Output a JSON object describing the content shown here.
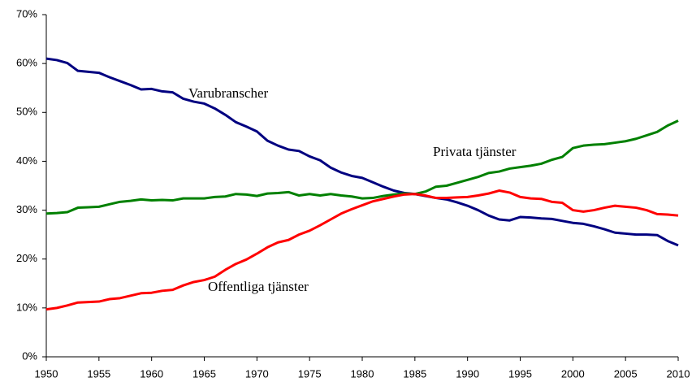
{
  "chart_data": {
    "type": "line",
    "x": [
      1950,
      1951,
      1952,
      1953,
      1954,
      1955,
      1956,
      1957,
      1958,
      1959,
      1960,
      1961,
      1962,
      1963,
      1964,
      1965,
      1966,
      1967,
      1968,
      1969,
      1970,
      1971,
      1972,
      1973,
      1974,
      1975,
      1976,
      1977,
      1978,
      1979,
      1980,
      1981,
      1982,
      1983,
      1984,
      1985,
      1986,
      1987,
      1988,
      1989,
      1990,
      1991,
      1992,
      1993,
      1994,
      1995,
      1996,
      1997,
      1998,
      1999,
      2000,
      2001,
      2002,
      2003,
      2004,
      2005,
      2006,
      2007,
      2008,
      2009,
      2010
    ],
    "series": [
      {
        "name": "Varubranscher",
        "color": "#000080",
        "values": [
          61.0,
          60.7,
          60.1,
          58.5,
          58.3,
          58.1,
          57.2,
          56.4,
          55.6,
          54.7,
          54.8,
          54.3,
          54.1,
          52.8,
          52.2,
          51.8,
          50.8,
          49.5,
          48.0,
          47.1,
          46.1,
          44.2,
          43.2,
          42.4,
          42.1,
          41.0,
          40.2,
          38.7,
          37.7,
          37.0,
          36.6,
          35.7,
          34.8,
          34.0,
          33.5,
          33.3,
          32.9,
          32.5,
          32.2,
          31.6,
          30.9,
          30.0,
          28.9,
          28.1,
          27.9,
          28.6,
          28.5,
          28.3,
          28.2,
          27.8,
          27.4,
          27.2,
          26.7,
          26.1,
          25.4,
          25.2,
          25.0,
          25.0,
          24.9,
          23.7,
          22.8
        ]
      },
      {
        "name": "Privata tjänster",
        "color": "#008000",
        "values": [
          29.3,
          29.4,
          29.6,
          30.5,
          30.6,
          30.7,
          31.2,
          31.7,
          31.9,
          32.2,
          32.0,
          32.1,
          32.0,
          32.4,
          32.4,
          32.4,
          32.7,
          32.8,
          33.3,
          33.2,
          32.9,
          33.4,
          33.5,
          33.7,
          33.0,
          33.3,
          33.0,
          33.3,
          33.0,
          32.8,
          32.4,
          32.5,
          32.9,
          33.2,
          33.4,
          33.3,
          33.8,
          34.8,
          35.0,
          35.6,
          36.2,
          36.8,
          37.6,
          37.9,
          38.5,
          38.8,
          39.1,
          39.5,
          40.3,
          40.9,
          42.7,
          43.2,
          43.4,
          43.5,
          43.8,
          44.1,
          44.6,
          45.3,
          46.0,
          47.3,
          48.3
        ]
      },
      {
        "name": "Offentliga tjänster",
        "color": "#ff0000",
        "values": [
          9.7,
          10.0,
          10.5,
          11.1,
          11.2,
          11.3,
          11.8,
          12.0,
          12.5,
          13.0,
          13.1,
          13.5,
          13.7,
          14.6,
          15.3,
          15.7,
          16.4,
          17.8,
          19.0,
          19.9,
          21.1,
          22.4,
          23.4,
          23.9,
          25.0,
          25.8,
          26.9,
          28.1,
          29.3,
          30.2,
          31.0,
          31.8,
          32.3,
          32.8,
          33.2,
          33.3,
          33.0,
          32.5,
          32.5,
          32.6,
          32.7,
          33.0,
          33.4,
          34.0,
          33.6,
          32.7,
          32.4,
          32.3,
          31.7,
          31.5,
          30.0,
          29.7,
          30.0,
          30.5,
          30.9,
          30.7,
          30.5,
          30.0,
          29.2,
          29.1,
          28.9
        ]
      }
    ],
    "xlim": [
      1950,
      2010
    ],
    "xticks": [
      1950,
      1955,
      1960,
      1965,
      1970,
      1975,
      1980,
      1985,
      1990,
      1995,
      2000,
      2005,
      2010
    ],
    "ylim": [
      0,
      70
    ],
    "yticks": [
      {
        "value": 0,
        "label": "0%"
      },
      {
        "value": 10,
        "label": "10%"
      },
      {
        "value": 20,
        "label": "20%"
      },
      {
        "value": 30,
        "label": "30%"
      },
      {
        "value": 40,
        "label": "40%"
      },
      {
        "value": 50,
        "label": "50%"
      },
      {
        "value": 60,
        "label": "60%"
      },
      {
        "value": 70,
        "label": "70%"
      }
    ],
    "grid": false
  }
}
